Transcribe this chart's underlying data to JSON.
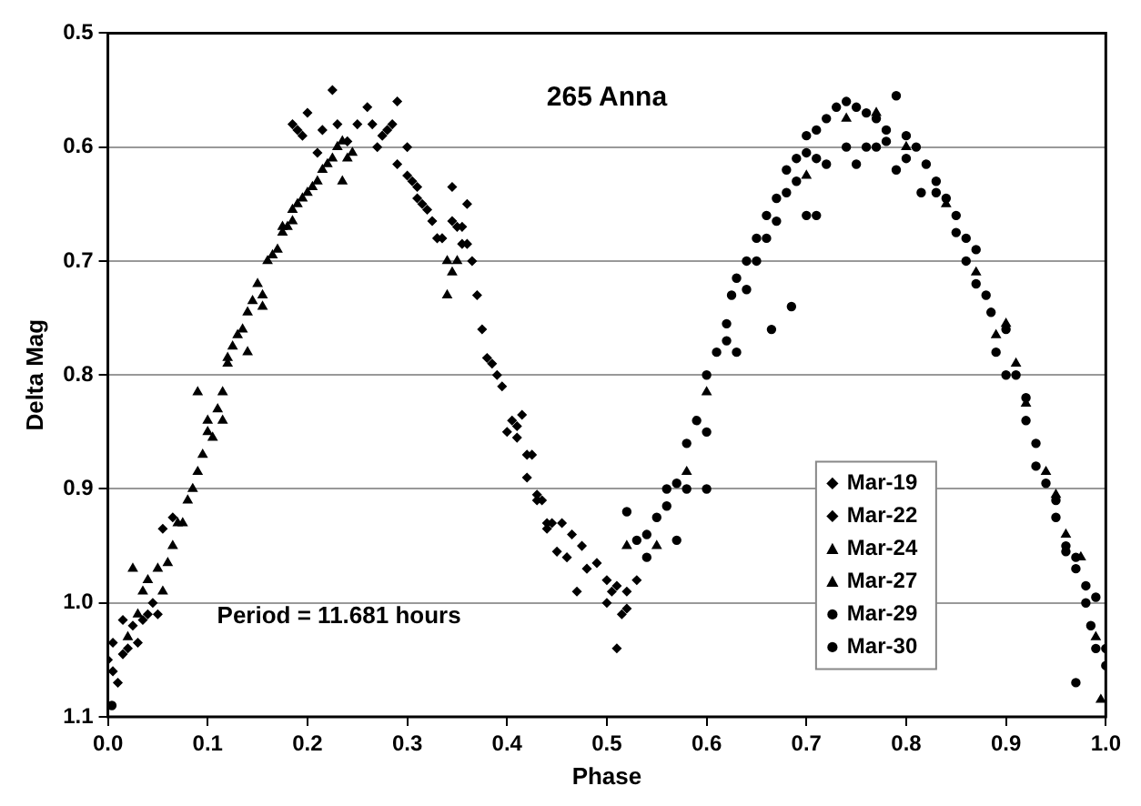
{
  "chart_data": {
    "type": "scatter",
    "title": "265 Anna",
    "xlabel": "Phase",
    "ylabel": "Delta Mag",
    "annotations": [
      "Period = 11.681 hours"
    ],
    "xlim": [
      0,
      1
    ],
    "xticks": [
      {
        "value": 0,
        "label": "0.0"
      },
      0.1,
      0.2,
      0.3,
      0.4,
      0.5,
      0.6,
      0.7,
      0.8,
      0.9,
      {
        "value": 1,
        "label": "1.0"
      }
    ],
    "ylim": [
      1.1,
      0.5
    ],
    "yticks": [
      0.5,
      0.6,
      0.7,
      0.8,
      0.9,
      {
        "value": 1,
        "label": "1.0"
      },
      1.1
    ],
    "grid": "y",
    "legend": "bottom right",
    "series": [
      {
        "name": "Mar-19",
        "color": "#000000",
        "marker": "diamond",
        "x": [
          0.005,
          0.015,
          0.185,
          0.19,
          0.195,
          0.2,
          0.21,
          0.215,
          0.225,
          0.23,
          0.24,
          0.25,
          0.26,
          0.265,
          0.27,
          0.275,
          0.28,
          0.285,
          0.29,
          0.3,
          0.305,
          0.31,
          0.32,
          0.33,
          0.345,
          0.355,
          0.36,
          0.365,
          0.37,
          0.375,
          0.38,
          0.39,
          0.4,
          0.41,
          0.42,
          0.43,
          0.44,
          0.45,
          0.46,
          0.47,
          0.48,
          0.5,
          0.51,
          0.52
        ],
        "values": [
          1.035,
          1.045,
          0.58,
          0.585,
          0.59,
          0.57,
          0.605,
          0.585,
          0.55,
          0.58,
          0.595,
          0.58,
          0.565,
          0.58,
          0.6,
          0.59,
          0.585,
          0.58,
          0.56,
          0.6,
          0.63,
          0.635,
          0.655,
          0.68,
          0.635,
          0.67,
          0.65,
          0.7,
          0.73,
          0.76,
          0.785,
          0.8,
          0.85,
          0.855,
          0.89,
          0.905,
          0.93,
          0.955,
          0.96,
          0.99,
          0.97,
          1.0,
          1.04,
          0.99
        ]
      },
      {
        "name": "Mar-22",
        "color": "#000000",
        "marker": "diamond",
        "x": [
          0,
          0.005,
          0.01,
          0.015,
          0.02,
          0.025,
          0.03,
          0.035,
          0.04,
          0.045,
          0.05,
          0.055,
          0.065,
          0.29,
          0.3,
          0.31,
          0.315,
          0.325,
          0.335,
          0.345,
          0.35,
          0.355,
          0.36,
          0.385,
          0.395,
          0.405,
          0.41,
          0.415,
          0.42,
          0.425,
          0.43,
          0.435,
          0.44,
          0.445,
          0.455,
          0.465,
          0.475,
          0.49,
          0.5,
          0.505,
          0.51,
          0.515,
          0.52,
          0.53
        ],
        "values": [
          1.05,
          1.06,
          1.07,
          1.015,
          1.04,
          1.02,
          1.035,
          1.015,
          1.01,
          1.0,
          1.01,
          0.935,
          0.925,
          0.615,
          0.625,
          0.645,
          0.65,
          0.665,
          0.68,
          0.665,
          0.67,
          0.685,
          0.685,
          0.79,
          0.81,
          0.84,
          0.845,
          0.835,
          0.87,
          0.87,
          0.91,
          0.91,
          0.935,
          0.93,
          0.93,
          0.94,
          0.95,
          0.965,
          0.98,
          0.99,
          0.985,
          1.01,
          1.005,
          0.98
        ]
      },
      {
        "name": "Mar-24",
        "color": "#000000",
        "marker": "triangle",
        "x": [
          0.02,
          0.03,
          0.035,
          0.04,
          0.045,
          0.05,
          0.055,
          0.06,
          0.065,
          0.07,
          0.075,
          0.08,
          0.085,
          0.09,
          0.095,
          0.1,
          0.105,
          0.11,
          0.115,
          0.12,
          0.125,
          0.13,
          0.135,
          0.14,
          0.145,
          0.15,
          0.155,
          0.16,
          0.165,
          0.17,
          0.175,
          0.18,
          0.185,
          0.19,
          0.195,
          0.2,
          0.205,
          0.21,
          0.215,
          0.22,
          0.225,
          0.23,
          0.235,
          0.24,
          0.245,
          0.34,
          0.345,
          0.35
        ],
        "values": [
          1.03,
          1.01,
          0.99,
          0.98,
          null,
          0.97,
          0.99,
          0.965,
          0.95,
          0.93,
          0.93,
          0.91,
          0.9,
          0.885,
          0.87,
          0.85,
          0.855,
          0.83,
          0.815,
          0.79,
          0.775,
          0.765,
          0.76,
          0.745,
          0.735,
          0.72,
          0.73,
          0.7,
          0.695,
          0.69,
          0.675,
          0.67,
          0.655,
          0.65,
          0.645,
          0.64,
          0.635,
          0.63,
          0.62,
          0.615,
          0.61,
          0.6,
          0.595,
          0.61,
          0.605,
          0.7,
          0.71,
          0.7
        ]
      },
      {
        "name": "Mar-27",
        "color": "#000000",
        "marker": "triangle",
        "x": [
          0.025,
          0.09,
          0.1,
          0.115,
          0.12,
          0.14,
          0.155,
          0.175,
          0.185,
          0.235,
          0.34,
          0.52,
          0.55,
          0.58,
          0.6,
          0.7,
          0.74,
          0.77,
          0.8,
          0.84,
          0.87,
          0.89,
          0.9,
          0.91,
          0.92,
          0.94,
          0.95,
          0.96,
          0.975,
          0.99,
          0.995
        ],
        "values": [
          0.97,
          0.815,
          0.84,
          0.84,
          0.785,
          0.78,
          0.74,
          0.67,
          0.665,
          0.63,
          0.73,
          0.95,
          0.95,
          0.885,
          0.815,
          0.625,
          0.575,
          0.57,
          0.6,
          0.65,
          0.71,
          0.765,
          0.755,
          0.79,
          0.825,
          0.885,
          0.905,
          0.94,
          0.96,
          1.03,
          1.085
        ]
      },
      {
        "name": "Mar-29",
        "color": "#000000",
        "marker": "circle",
        "x": [
          0.004,
          0.53,
          0.54,
          0.55,
          0.56,
          0.57,
          0.58,
          0.59,
          0.6,
          0.61,
          0.62,
          0.625,
          0.63,
          0.64,
          0.65,
          0.66,
          0.665,
          0.67,
          0.68,
          0.685,
          0.69,
          0.7,
          0.7,
          0.71,
          0.71,
          0.72,
          0.73,
          0.74,
          0.75,
          0.75,
          0.76,
          0.77,
          0.78,
          0.79,
          0.8,
          0.81,
          0.82,
          0.83,
          0.84,
          0.85,
          0.86,
          0.87,
          0.88,
          0.885,
          0.9,
          0.91,
          0.92,
          0.93,
          0.94,
          0.95,
          0.96,
          0.97,
          0.97,
          0.98,
          0.985,
          0.99,
          1.0
        ],
        "values": [
          1.09,
          0.945,
          0.94,
          0.925,
          0.9,
          0.895,
          0.86,
          0.84,
          0.8,
          0.78,
          0.755,
          0.73,
          0.715,
          0.7,
          0.68,
          0.66,
          0.76,
          0.645,
          0.62,
          0.74,
          0.61,
          0.59,
          0.66,
          0.585,
          0.66,
          0.575,
          0.565,
          0.56,
          0.565,
          0.615,
          0.57,
          0.575,
          0.585,
          0.555,
          0.59,
          0.6,
          0.615,
          0.63,
          0.645,
          0.66,
          0.68,
          0.69,
          0.73,
          0.745,
          0.76,
          0.8,
          0.82,
          0.86,
          0.895,
          0.91,
          0.95,
          0.97,
          1.07,
          1.0,
          1.02,
          1.04,
          1.055
        ]
      },
      {
        "name": "Mar-30",
        "color": "#000000",
        "marker": "circle",
        "x": [
          0.52,
          0.54,
          0.56,
          0.57,
          0.58,
          0.6,
          0.6,
          0.62,
          0.63,
          0.64,
          0.65,
          0.66,
          0.67,
          0.68,
          0.69,
          0.7,
          0.71,
          0.72,
          0.74,
          0.76,
          0.77,
          0.78,
          0.79,
          0.8,
          0.815,
          0.83,
          0.85,
          0.86,
          0.87,
          0.89,
          0.9,
          0.92,
          0.93,
          0.95,
          0.96,
          0.97,
          0.98,
          0.99,
          1.0
        ],
        "values": [
          0.92,
          0.96,
          0.915,
          0.945,
          0.9,
          0.9,
          0.85,
          0.77,
          0.78,
          0.725,
          0.7,
          0.68,
          0.665,
          0.64,
          0.63,
          0.605,
          0.61,
          0.615,
          0.6,
          0.6,
          0.6,
          0.595,
          0.62,
          0.61,
          0.64,
          0.64,
          0.675,
          0.7,
          0.72,
          0.78,
          0.8,
          0.84,
          0.88,
          0.925,
          0.955,
          0.96,
          0.985,
          0.995,
          1.04
        ]
      }
    ]
  }
}
